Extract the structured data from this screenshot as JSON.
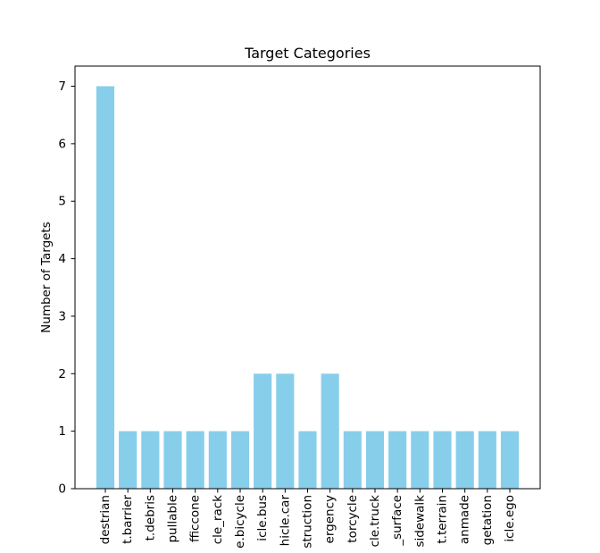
{
  "chart_data": {
    "type": "bar",
    "title": "Target Categories",
    "xlabel": "",
    "ylabel": "Number of Targets",
    "categories": [
      "destrian",
      "t.barrier",
      "t.debris",
      "pullable",
      "fficcone",
      "cle_rack",
      "e.bicycle",
      "icle.bus",
      "hicle.car",
      "struction",
      "ergency",
      "torcycle",
      "cle.truck",
      "_surface",
      "sidewalk",
      "t.terrain",
      "anmade",
      "getation",
      "icle.ego"
    ],
    "values": [
      7,
      1,
      1,
      1,
      1,
      1,
      1,
      2,
      2,
      1,
      2,
      1,
      1,
      1,
      1,
      1,
      1,
      1,
      1
    ],
    "ylim": [
      0,
      7.35
    ],
    "yticks": [
      0,
      1,
      2,
      3,
      4,
      5,
      6,
      7
    ],
    "bar_color": "#87ceeb",
    "grid": false,
    "legend": "none"
  }
}
